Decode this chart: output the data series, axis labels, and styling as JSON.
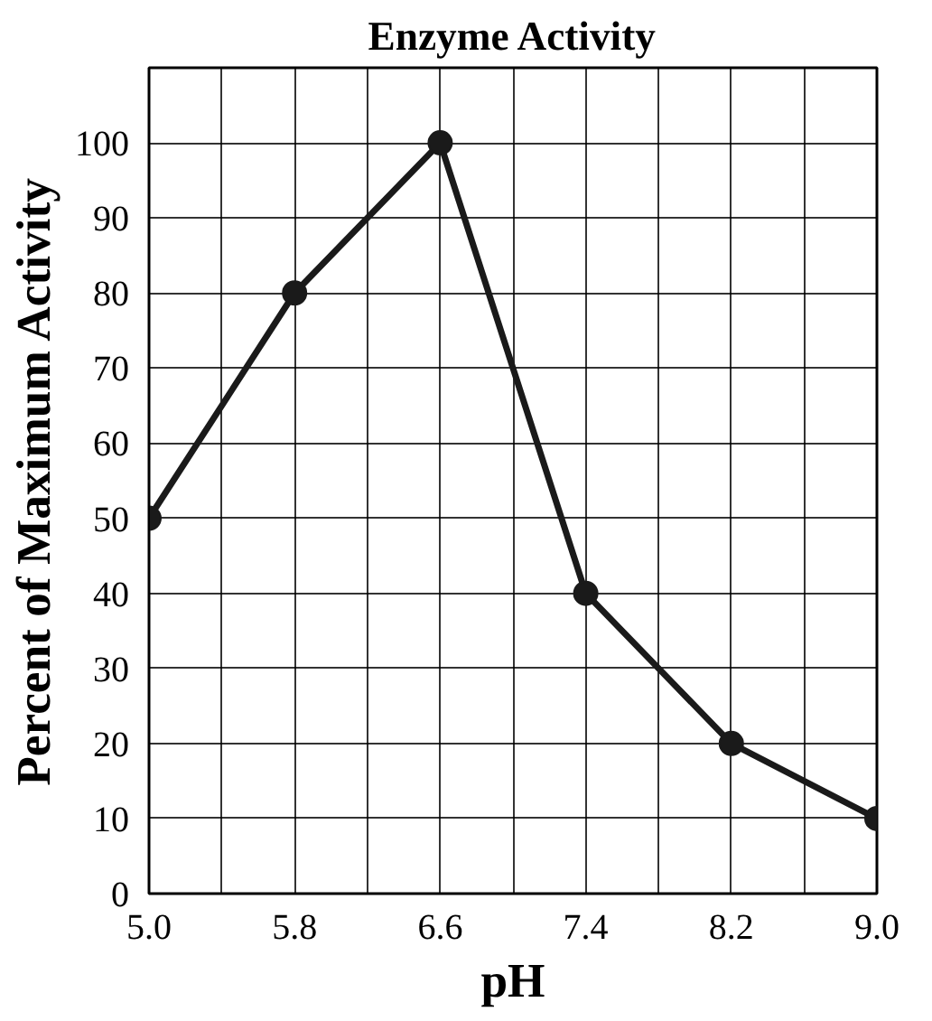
{
  "chart_data": {
    "type": "line",
    "title": "Enzyme Activity",
    "xlabel": "pH",
    "ylabel": "Percent of Maximum Activity",
    "x": [
      5.0,
      5.8,
      6.6,
      7.4,
      8.2,
      9.0
    ],
    "series": [
      {
        "color": "#1a1a1a",
        "values": [
          50,
          80,
          100,
          40,
          20,
          10
        ]
      }
    ],
    "xlim": [
      5.0,
      9.0
    ],
    "xticks": [
      {
        "value": 5.0,
        "label": "5.0"
      },
      {
        "value": 5.4,
        "label": null
      },
      {
        "value": 5.8,
        "label": "5.8"
      },
      {
        "value": 6.2,
        "label": null
      },
      {
        "value": 6.6,
        "label": "6.6"
      },
      {
        "value": 7.0,
        "label": null
      },
      {
        "value": 7.4,
        "label": "7.4"
      },
      {
        "value": 7.8,
        "label": null
      },
      {
        "value": 8.2,
        "label": "8.2"
      },
      {
        "value": 8.6,
        "label": null
      },
      {
        "value": 9.0,
        "label": "9.0"
      }
    ],
    "ylim": [
      0,
      110
    ],
    "yticks": [
      0,
      10,
      20,
      30,
      40,
      50,
      60,
      70,
      80,
      90,
      100,
      {
        "value": 110,
        "label": null
      }
    ],
    "grid": true,
    "marker": "circle",
    "line_style": "solid"
  }
}
